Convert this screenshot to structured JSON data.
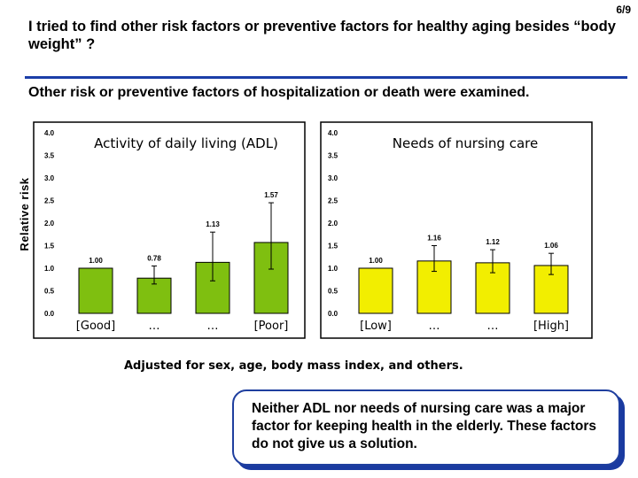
{
  "slide": {
    "page_number": "6/9",
    "title": "I tried to find other risk factors or preventive factors for healthy aging besides “body weight” ?",
    "subtitle": "Other risk or preventive factors of hospitalization or death were examined.",
    "y_axis_title": "Relative risk",
    "footnote": "Adjusted for sex, age, body mass index, and others.",
    "conclusion": "Neither ADL nor needs of nursing care was a major factor for keeping health in the elderly. These factors do not give us a solution."
  },
  "colors": {
    "accent_rule": "#1b3ea8",
    "adl_bar": "#7fbf10",
    "nursing_bar": "#f2ee00",
    "box_border": "#1f3f9f"
  },
  "chart_data": [
    {
      "type": "bar",
      "title": "Activity of daily living (ADL)",
      "categories": [
        "[Good]",
        "…",
        "…",
        "[Poor]"
      ],
      "values": [
        1.0,
        0.78,
        1.13,
        1.57
      ],
      "value_labels": [
        "1.00",
        "0.78",
        "1.13",
        "1.57"
      ],
      "error_low": [
        null,
        0.65,
        0.72,
        0.98
      ],
      "error_high": [
        null,
        1.05,
        1.8,
        2.45
      ],
      "ylim": [
        0,
        4.0
      ],
      "yticks": [
        "4.0",
        "3.5",
        "3.0",
        "2.5",
        "2.0",
        "1.5",
        "1.0",
        "0.5",
        "0.0"
      ],
      "grid": false
    },
    {
      "type": "bar",
      "title": "Needs of nursing care",
      "categories": [
        "[Low]",
        "…",
        "…",
        "[High]"
      ],
      "values": [
        1.0,
        1.16,
        1.12,
        1.06
      ],
      "value_labels": [
        "1.00",
        "1.16",
        "1.12",
        "1.06"
      ],
      "error_low": [
        null,
        0.93,
        0.9,
        0.86
      ],
      "error_high": [
        null,
        1.5,
        1.41,
        1.33
      ],
      "ylim": [
        0,
        4.0
      ],
      "yticks": [
        "4.0",
        "3.5",
        "3.0",
        "2.5",
        "2.0",
        "1.5",
        "1.0",
        "0.5",
        "0.0"
      ],
      "grid": false
    }
  ]
}
